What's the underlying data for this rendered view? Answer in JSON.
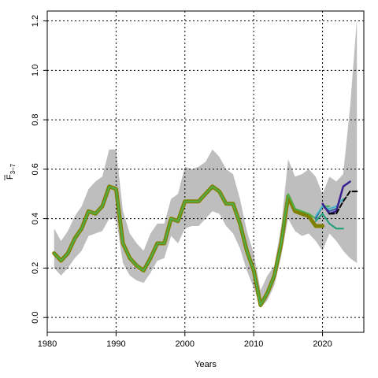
{
  "chart_data": {
    "type": "line",
    "xlabel": "Years",
    "ylabel": "F",
    "ylabel_sub": "3–7",
    "xlim": [
      1980,
      2026
    ],
    "ylim": [
      -0.06,
      1.24
    ],
    "xticks": [
      1980,
      1990,
      2000,
      2010,
      2020
    ],
    "xtick_labels": [
      "1980",
      "1990",
      "2000",
      "2010",
      "2020"
    ],
    "yticks": [
      0.0,
      0.2,
      0.4,
      0.6,
      0.8,
      1.0,
      1.2
    ],
    "ytick_labels": [
      "0.0",
      "0.2",
      "0.4",
      "0.6",
      "0.8",
      "1.0",
      "1.2"
    ],
    "grid": true,
    "band": {
      "color": "#bebebe",
      "x": [
        1981,
        1982,
        1983,
        1984,
        1985,
        1986,
        1987,
        1988,
        1989,
        1990,
        1991,
        1992,
        1993,
        1994,
        1995,
        1996,
        1997,
        1998,
        1999,
        2000,
        2001,
        2002,
        2003,
        2004,
        2005,
        2006,
        2007,
        2008,
        2009,
        2010,
        2011,
        2012,
        2013,
        2014,
        2015,
        2016,
        2017,
        2018,
        2019,
        2020,
        2021,
        2022,
        2023,
        2024,
        2025
      ],
      "upper": [
        0.36,
        0.31,
        0.35,
        0.41,
        0.45,
        0.52,
        0.55,
        0.57,
        0.68,
        0.68,
        0.43,
        0.34,
        0.3,
        0.27,
        0.34,
        0.38,
        0.38,
        0.48,
        0.5,
        0.61,
        0.6,
        0.61,
        0.63,
        0.68,
        0.65,
        0.6,
        0.58,
        0.48,
        0.35,
        0.26,
        0.11,
        0.17,
        0.21,
        0.37,
        0.64,
        0.57,
        0.58,
        0.6,
        0.57,
        0.5,
        0.57,
        0.55,
        0.58,
        0.85,
        1.21
      ],
      "lower": [
        0.2,
        0.17,
        0.2,
        0.24,
        0.27,
        0.33,
        0.34,
        0.35,
        0.4,
        0.4,
        0.22,
        0.17,
        0.15,
        0.14,
        0.18,
        0.23,
        0.24,
        0.33,
        0.3,
        0.36,
        0.37,
        0.37,
        0.4,
        0.43,
        0.42,
        0.37,
        0.34,
        0.28,
        0.19,
        0.12,
        0.04,
        0.07,
        0.13,
        0.25,
        0.4,
        0.35,
        0.33,
        0.34,
        0.31,
        0.27,
        0.34,
        0.31,
        0.27,
        0.24,
        0.22
      ]
    },
    "series": [
      {
        "color": "#808000",
        "width": 5,
        "x": [
          1981,
          1982,
          1983,
          1984,
          1985,
          1986,
          1987,
          1988,
          1989,
          1990,
          1991,
          1992,
          1993,
          1994,
          1995,
          1996,
          1997,
          1998,
          1999,
          2000,
          2001,
          2002,
          2003,
          2004,
          2005,
          2006,
          2007,
          2008,
          2009,
          2010,
          2011,
          2012,
          2013,
          2014,
          2015,
          2016,
          2017,
          2018,
          2019,
          2020
        ],
        "values": [
          0.26,
          0.23,
          0.26,
          0.32,
          0.36,
          0.43,
          0.42,
          0.45,
          0.53,
          0.52,
          0.3,
          0.24,
          0.21,
          0.19,
          0.24,
          0.3,
          0.3,
          0.4,
          0.39,
          0.47,
          0.47,
          0.47,
          0.5,
          0.53,
          0.51,
          0.46,
          0.46,
          0.38,
          0.27,
          0.19,
          0.05,
          0.1,
          0.17,
          0.3,
          0.49,
          0.43,
          0.42,
          0.41,
          0.37,
          0.37
        ]
      },
      {
        "color": "#4daf4a",
        "width": 2,
        "x": [
          1981,
          1982,
          1983,
          1984,
          1985,
          1986,
          1987,
          1988,
          1989,
          1990,
          1991,
          1992,
          1993,
          1994,
          1995,
          1996,
          1997,
          1998,
          1999,
          2000,
          2001,
          2002,
          2003,
          2004,
          2005,
          2006,
          2007,
          2008,
          2009,
          2010,
          2011,
          2012,
          2013,
          2014,
          2015,
          2016,
          2017,
          2018,
          2019,
          2020,
          2021
        ],
        "values": [
          0.26,
          0.23,
          0.26,
          0.32,
          0.36,
          0.43,
          0.42,
          0.45,
          0.53,
          0.52,
          0.3,
          0.24,
          0.21,
          0.19,
          0.24,
          0.3,
          0.3,
          0.4,
          0.39,
          0.47,
          0.47,
          0.47,
          0.5,
          0.53,
          0.51,
          0.46,
          0.46,
          0.38,
          0.27,
          0.19,
          0.05,
          0.1,
          0.17,
          0.3,
          0.5,
          0.44,
          0.43,
          0.42,
          0.4,
          0.45,
          0.45
        ]
      },
      {
        "color": "#1b9e77",
        "width": 2,
        "x": [
          2019,
          2020,
          2021,
          2022,
          2023
        ],
        "values": [
          0.39,
          0.42,
          0.38,
          0.36,
          0.36
        ]
      },
      {
        "color": "#2f5f9f",
        "width": 2,
        "x": [
          2019,
          2020,
          2021,
          2022
        ],
        "values": [
          0.4,
          0.45,
          0.43,
          0.44
        ]
      },
      {
        "color": "#41b6c4",
        "width": 2,
        "x": [
          2019,
          2020,
          2021,
          2022,
          2023
        ],
        "values": [
          0.41,
          0.45,
          0.44,
          0.45,
          0.48
        ]
      },
      {
        "color": "#3a1f8f",
        "width": 2.5,
        "x": [
          2020,
          2021,
          2022,
          2023,
          2024
        ],
        "values": [
          0.46,
          0.42,
          0.43,
          0.53,
          0.55
        ]
      },
      {
        "color": "#000000",
        "width": 2,
        "dashed": true,
        "x": [
          2021,
          2022,
          2023,
          2024,
          2025
        ],
        "values": [
          0.42,
          0.42,
          0.47,
          0.51,
          0.51
        ]
      }
    ]
  }
}
